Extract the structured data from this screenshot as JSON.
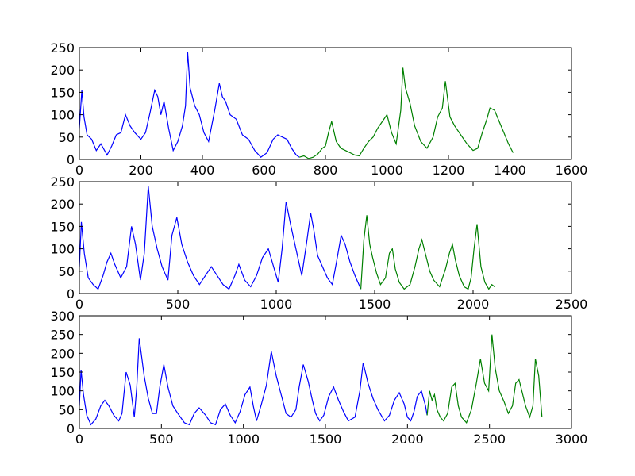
{
  "chart_data": [
    {
      "type": "line",
      "title": "",
      "xlabel": "",
      "ylabel": "",
      "xlim": [
        0,
        1600
      ],
      "ylim": [
        0,
        250
      ],
      "xticks": [
        0,
        200,
        400,
        600,
        800,
        1000,
        1200,
        1400,
        1600
      ],
      "yticks": [
        0,
        50,
        100,
        150,
        200,
        250
      ],
      "grid": false,
      "series": [
        {
          "color": "#0000ff",
          "x": [
            0,
            8,
            15,
            25,
            40,
            55,
            70,
            90,
            105,
            120,
            135,
            150,
            165,
            180,
            200,
            215,
            230,
            245,
            255,
            265,
            275,
            290,
            305,
            320,
            335,
            345,
            352,
            360,
            375,
            390,
            405,
            420,
            440,
            455,
            465,
            475,
            490,
            510,
            530,
            550,
            570,
            590,
            610,
            630,
            645,
            660,
            675,
            690,
            705,
            715
          ],
          "y": [
            70,
            155,
            95,
            55,
            45,
            20,
            35,
            10,
            30,
            55,
            60,
            100,
            75,
            60,
            45,
            60,
            105,
            155,
            140,
            100,
            130,
            70,
            20,
            40,
            75,
            120,
            240,
            160,
            120,
            100,
            60,
            40,
            110,
            170,
            140,
            130,
            100,
            90,
            55,
            45,
            20,
            5,
            15,
            45,
            55,
            50,
            45,
            25,
            10,
            5
          ]
        },
        {
          "color": "#008000",
          "x": [
            715,
            730,
            745,
            760,
            775,
            790,
            800,
            810,
            820,
            835,
            850,
            865,
            880,
            895,
            910,
            925,
            940,
            955,
            970,
            985,
            1000,
            1015,
            1030,
            1045,
            1052,
            1060,
            1075,
            1090,
            1110,
            1130,
            1150,
            1165,
            1180,
            1190,
            1205,
            1220,
            1240,
            1260,
            1280,
            1295,
            1310,
            1325,
            1335,
            1350,
            1365,
            1380,
            1395,
            1410
          ],
          "y": [
            5,
            8,
            2,
            5,
            12,
            25,
            30,
            60,
            85,
            40,
            25,
            20,
            15,
            10,
            8,
            25,
            40,
            50,
            70,
            85,
            100,
            60,
            35,
            110,
            205,
            160,
            125,
            75,
            40,
            25,
            50,
            95,
            115,
            175,
            95,
            75,
            55,
            35,
            20,
            25,
            60,
            90,
            115,
            110,
            85,
            60,
            35,
            15
          ]
        }
      ]
    },
    {
      "type": "line",
      "title": "",
      "xlabel": "",
      "ylabel": "",
      "xlim": [
        0,
        2500
      ],
      "ylim": [
        0,
        250
      ],
      "xticks": [
        0,
        500,
        1000,
        1500,
        2000,
        2500
      ],
      "yticks": [
        0,
        50,
        100,
        150,
        200,
        250
      ],
      "grid": false,
      "series": [
        {
          "color": "#0000ff",
          "x": [
            0,
            10,
            25,
            45,
            70,
            95,
            120,
            140,
            160,
            180,
            210,
            240,
            265,
            285,
            310,
            330,
            350,
            370,
            395,
            420,
            450,
            470,
            495,
            520,
            550,
            580,
            610,
            640,
            670,
            700,
            730,
            760,
            790,
            810,
            840,
            870,
            900,
            930,
            960,
            990,
            1010,
            1030,
            1050,
            1075,
            1100,
            1130,
            1155,
            1175,
            1190,
            1210,
            1235,
            1260,
            1285,
            1310,
            1330,
            1350,
            1375,
            1400,
            1420,
            1430
          ],
          "y": [
            60,
            160,
            90,
            35,
            20,
            10,
            40,
            70,
            90,
            65,
            35,
            60,
            150,
            110,
            30,
            90,
            240,
            150,
            100,
            60,
            30,
            130,
            170,
            110,
            70,
            40,
            20,
            40,
            60,
            40,
            20,
            10,
            40,
            65,
            30,
            15,
            40,
            80,
            100,
            55,
            25,
            100,
            205,
            150,
            100,
            40,
            115,
            180,
            145,
            85,
            60,
            35,
            20,
            80,
            130,
            110,
            70,
            40,
            20,
            10
          ]
        },
        {
          "color": "#008000",
          "x": [
            1430,
            1445,
            1460,
            1475,
            1490,
            1510,
            1530,
            1555,
            1575,
            1590,
            1605,
            1625,
            1650,
            1680,
            1705,
            1725,
            1740,
            1760,
            1780,
            1800,
            1830,
            1860,
            1880,
            1895,
            1910,
            1930,
            1955,
            1975,
            1990,
            2005,
            2020,
            2040,
            2060,
            2080,
            2095,
            2110
          ],
          "y": [
            10,
            120,
            175,
            110,
            80,
            45,
            20,
            35,
            90,
            100,
            55,
            25,
            10,
            20,
            60,
            100,
            120,
            85,
            50,
            30,
            15,
            55,
            90,
            110,
            75,
            40,
            15,
            10,
            35,
            100,
            155,
            60,
            25,
            10,
            20,
            15
          ]
        }
      ]
    },
    {
      "type": "line",
      "title": "",
      "xlabel": "",
      "ylabel": "",
      "xlim": [
        0,
        3000
      ],
      "ylim": [
        0,
        300
      ],
      "xticks": [
        0,
        500,
        1000,
        1500,
        2000,
        2500,
        3000
      ],
      "yticks": [
        0,
        50,
        100,
        150,
        200,
        250,
        300
      ],
      "grid": false,
      "series": [
        {
          "color": "#0000ff",
          "x": [
            0,
            10,
            25,
            45,
            70,
            100,
            130,
            155,
            180,
            210,
            240,
            260,
            285,
            310,
            335,
            350,
            365,
            395,
            420,
            445,
            470,
            490,
            515,
            540,
            570,
            600,
            640,
            670,
            700,
            730,
            770,
            800,
            830,
            860,
            890,
            920,
            950,
            980,
            1010,
            1040,
            1060,
            1080,
            1110,
            1140,
            1170,
            1200,
            1230,
            1260,
            1290,
            1320,
            1340,
            1365,
            1395,
            1420,
            1440,
            1465,
            1490,
            1520,
            1550,
            1580,
            1610,
            1640,
            1680,
            1710,
            1730,
            1760,
            1790,
            1820,
            1860,
            1890,
            1920,
            1950,
            1980,
            2000,
            2020,
            2040,
            2060,
            2085,
            2110,
            2120
          ],
          "y": [
            60,
            155,
            90,
            35,
            10,
            25,
            60,
            75,
            60,
            35,
            20,
            40,
            150,
            115,
            30,
            110,
            240,
            140,
            80,
            40,
            40,
            110,
            170,
            110,
            60,
            40,
            15,
            10,
            40,
            55,
            35,
            15,
            10,
            50,
            65,
            35,
            15,
            45,
            90,
            110,
            60,
            20,
            65,
            115,
            205,
            140,
            90,
            40,
            30,
            50,
            110,
            170,
            125,
            75,
            40,
            20,
            35,
            85,
            110,
            75,
            45,
            20,
            30,
            100,
            175,
            120,
            80,
            50,
            20,
            35,
            75,
            95,
            65,
            30,
            20,
            45,
            85,
            100,
            60,
            35
          ]
        },
        {
          "color": "#008000",
          "x": [
            2120,
            2135,
            2150,
            2165,
            2180,
            2200,
            2220,
            2245,
            2270,
            2290,
            2310,
            2330,
            2360,
            2390,
            2420,
            2445,
            2470,
            2495,
            2515,
            2535,
            2560,
            2590,
            2615,
            2640,
            2660,
            2680,
            2700,
            2720,
            2745,
            2765,
            2780,
            2800,
            2820
          ],
          "y": [
            35,
            100,
            75,
            90,
            50,
            30,
            20,
            40,
            110,
            120,
            60,
            30,
            15,
            50,
            120,
            185,
            120,
            100,
            250,
            160,
            100,
            70,
            40,
            60,
            120,
            130,
            95,
            60,
            30,
            60,
            185,
            140,
            30
          ]
        }
      ]
    }
  ]
}
